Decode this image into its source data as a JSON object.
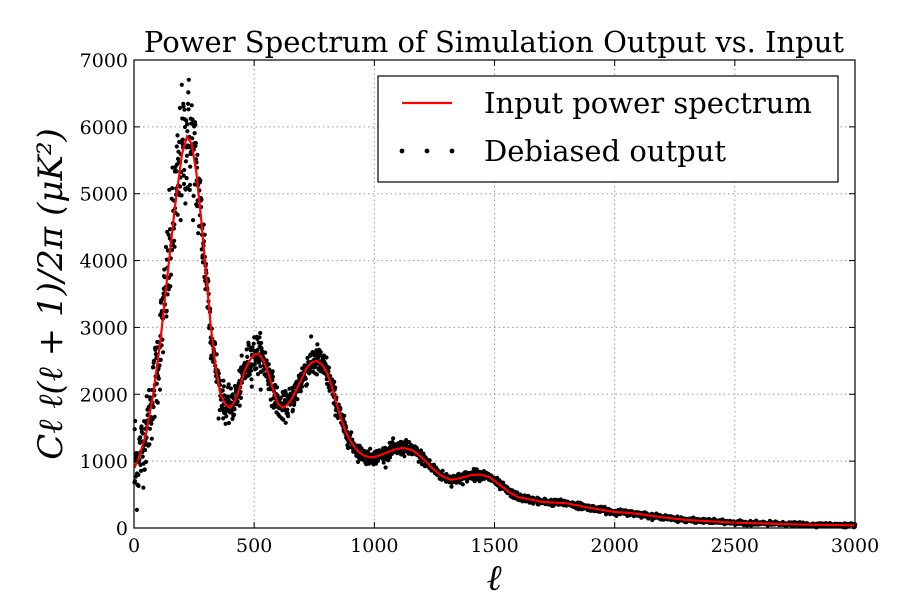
{
  "chart_data": {
    "type": "scatter",
    "title": "Power Spectrum of Simulation Output vs. Input",
    "xlabel": "ℓ",
    "ylabel": "Cℓ ℓ(ℓ + 1)/2π (μK²)",
    "xlim": [
      0,
      3000
    ],
    "ylim": [
      0,
      7000
    ],
    "x_ticks": [
      0,
      500,
      1000,
      1500,
      2000,
      2500,
      3000
    ],
    "y_ticks": [
      0,
      1000,
      2000,
      3000,
      4000,
      5000,
      6000,
      7000
    ],
    "grid": true,
    "legend_position": "top-right",
    "colors": {
      "input_line": "#ff0000",
      "output_points": "#000000"
    },
    "series": [
      {
        "name": "Input power spectrum",
        "style": "line",
        "x": [
          2,
          20,
          50,
          80,
          110,
          140,
          170,
          200,
          220,
          240,
          260,
          280,
          300,
          320,
          340,
          360,
          380,
          400,
          420,
          440,
          460,
          480,
          500,
          520,
          540,
          560,
          580,
          600,
          620,
          640,
          660,
          680,
          700,
          720,
          740,
          760,
          780,
          800,
          820,
          840,
          860,
          880,
          900,
          920,
          940,
          960,
          980,
          1000,
          1040,
          1080,
          1120,
          1160,
          1200,
          1240,
          1280,
          1320,
          1360,
          1400,
          1440,
          1480,
          1520,
          1560,
          1600,
          1700,
          1800,
          1900,
          2000,
          2050,
          2100,
          2200,
          2300,
          2400,
          2500,
          2600,
          2700,
          2800,
          2900,
          3000
        ],
        "y": [
          900,
          1050,
          1400,
          2000,
          2800,
          3800,
          4800,
          5600,
          5850,
          5750,
          5300,
          4600,
          3800,
          3000,
          2400,
          2000,
          1850,
          1800,
          1900,
          2100,
          2350,
          2500,
          2600,
          2600,
          2500,
          2300,
          2050,
          1850,
          1800,
          1850,
          1950,
          2100,
          2250,
          2400,
          2480,
          2500,
          2450,
          2350,
          2150,
          1900,
          1650,
          1450,
          1300,
          1200,
          1120,
          1080,
          1060,
          1060,
          1110,
          1170,
          1200,
          1160,
          1050,
          900,
          780,
          720,
          750,
          790,
          800,
          760,
          650,
          540,
          460,
          390,
          370,
          300,
          240,
          230,
          210,
          160,
          120,
          100,
          80,
          70,
          60,
          50,
          45,
          40
        ]
      },
      {
        "name": "Debiased output",
        "style": "points",
        "n_points": 3000,
        "x_start": 2,
        "x_step": 1,
        "note": "Noisy samples scattered around the input spectrum; scatter amplitude largest near the first peak (ℓ≈220)"
      }
    ]
  }
}
